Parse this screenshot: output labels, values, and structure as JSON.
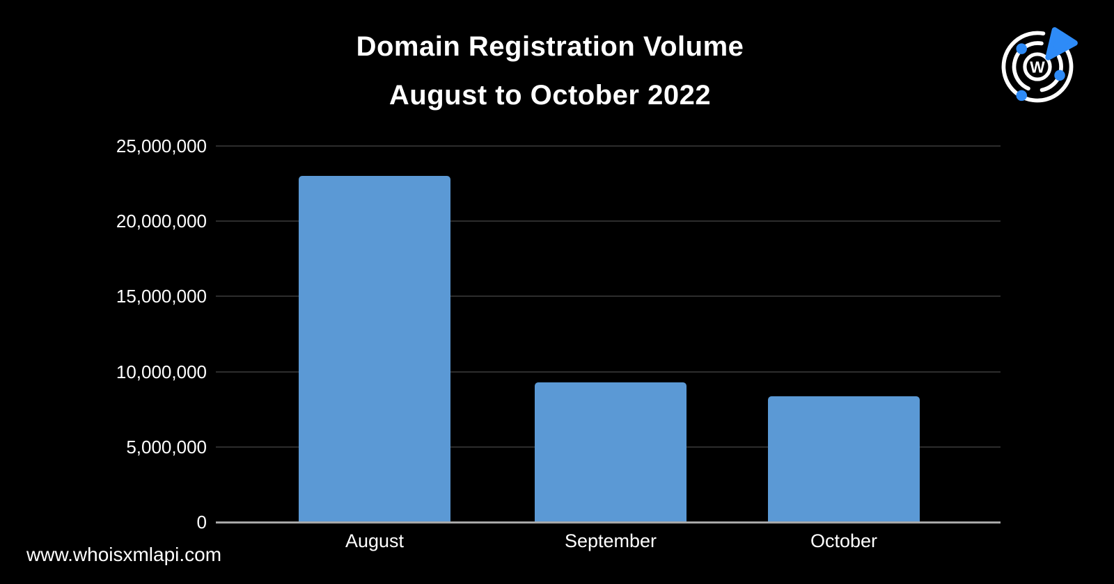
{
  "header": {
    "title": "Domain Registration Volume",
    "subtitle": "August to October 2022"
  },
  "branding": {
    "logo_name": "whoisxmlapi-radar-logo",
    "logo_letter": "W",
    "website": "www.whoisxmlapi.com"
  },
  "colors": {
    "background": "#000000",
    "bar": "#5b99d5",
    "grid": "#2d2d2d",
    "axis": "#a8a8a8",
    "text": "#ffffff",
    "logo_accent": "#2e8bf7",
    "logo_ring": "#ffffff"
  },
  "chart_data": {
    "type": "bar",
    "title": "Domain Registration Volume",
    "subtitle": "August to October 2022",
    "categories": [
      "August",
      "September",
      "October"
    ],
    "values": [
      23000000,
      9300000,
      8350000
    ],
    "ylim": [
      0,
      25000000
    ],
    "yticks": [
      0,
      5000000,
      10000000,
      15000000,
      20000000,
      25000000
    ],
    "ytick_labels": [
      "0",
      "5,000,000",
      "10,000,000",
      "15,000,000",
      "20,000,000",
      "25,000,000"
    ],
    "xlabel": "",
    "ylabel": "",
    "grid": true,
    "legend_position": "none",
    "bar_color": "#5b99d5",
    "background_color": "#000000"
  }
}
